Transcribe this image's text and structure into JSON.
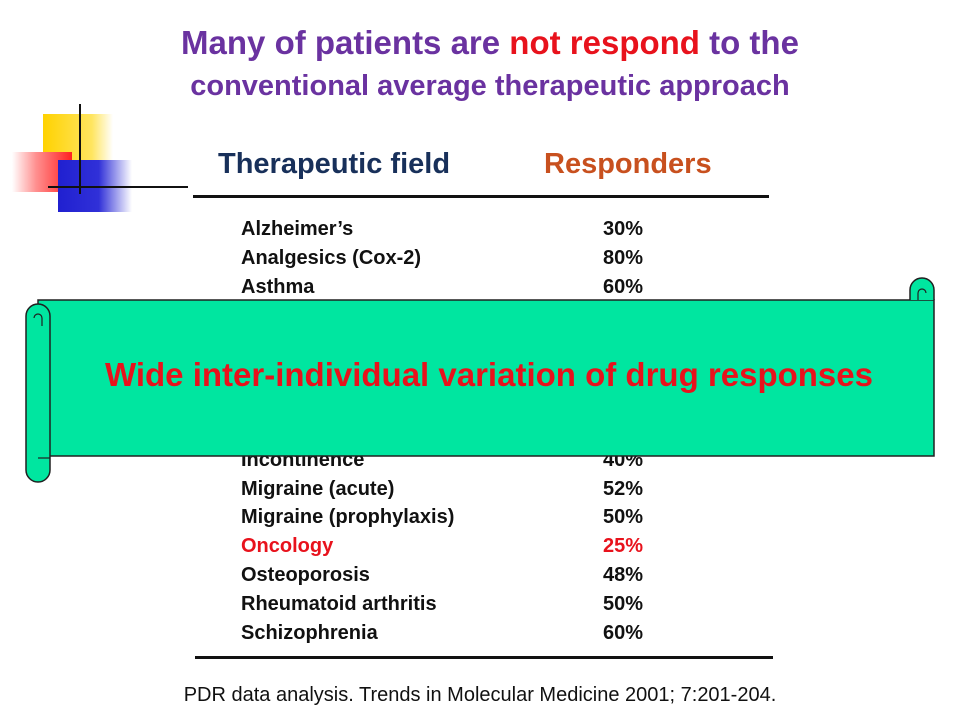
{
  "title": {
    "line1_part1": "Many of patients are ",
    "line1_highlight": "not respond",
    "line1_part2": " to the",
    "line2": "conventional average therapeutic approach"
  },
  "colors": {
    "title": "#6a32a0",
    "highlight": "#e8121c",
    "header_field": "#18305a",
    "header_responders": "#c8501e",
    "banner_fill": "#00e6a0"
  },
  "table": {
    "header_field": "Therapeutic field",
    "header_responders": "Responders",
    "rows": [
      {
        "field": "Alzheimer’s",
        "value": "30%"
      },
      {
        "field": "Analgesics (Cox-2)",
        "value": "80%"
      },
      {
        "field": "Asthma",
        "value": "60%"
      },
      {
        "field": "Incontinence",
        "value": "40%"
      },
      {
        "field": "Migraine (acute)",
        "value": "52%"
      },
      {
        "field": "Migraine (prophylaxis)",
        "value": "50%"
      },
      {
        "field": "Oncology",
        "value": "25%"
      },
      {
        "field": "Osteoporosis",
        "value": "48%"
      },
      {
        "field": "Rheumatoid arthritis",
        "value": "50%"
      },
      {
        "field": "Schizophrenia",
        "value": "60%"
      }
    ]
  },
  "banner": {
    "text": "Wide inter-individual variation of drug responses"
  },
  "citation": "PDR data analysis. Trends in Molecular Medicine 2001; 7:201-204."
}
